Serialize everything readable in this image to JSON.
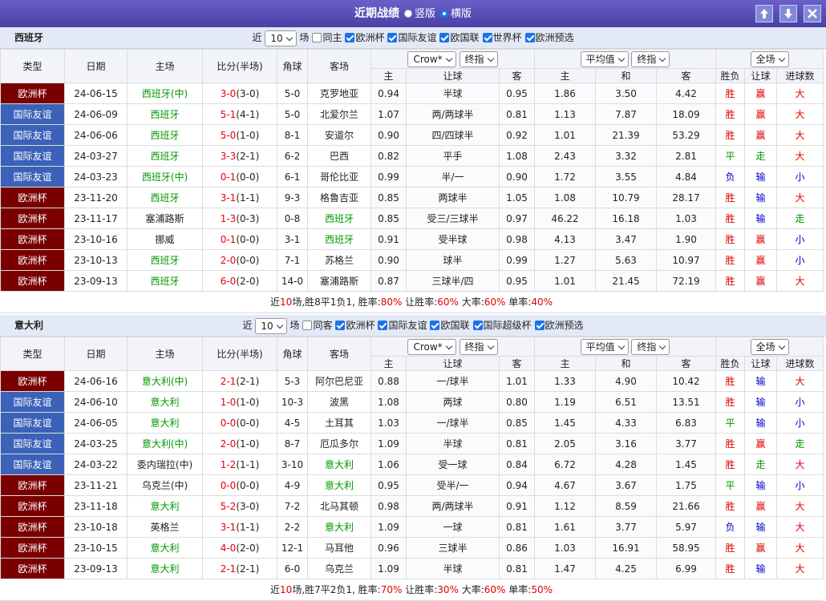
{
  "header": {
    "title": "近期战绩",
    "options": [
      {
        "label": "竖版",
        "checked": false
      },
      {
        "label": "横版",
        "checked": true
      }
    ]
  },
  "columns": {
    "fixed": [
      "类型",
      "日期",
      "主场",
      "比分(半场)",
      "角球",
      "客场"
    ],
    "groups": [
      [
        "Crow*",
        "终指"
      ],
      [
        "平均值",
        "终指"
      ],
      [
        "全场"
      ]
    ],
    "sub": [
      "主",
      "让球",
      "客",
      "主",
      "和",
      "客",
      "胜负",
      "让球",
      "进球数"
    ]
  },
  "type_colors": {
    "欧洲杯": "#7a0000",
    "国际友谊": "#3b62b8"
  },
  "result_colors": {
    "胜": "#e00000",
    "平": "#009900",
    "负": "#0000cc",
    "赢": "#e00000",
    "输": "#0000cc",
    "走": "#009900",
    "大": "#e00000",
    "小": "#0000cc"
  },
  "team_color": "#009900",
  "summary_highlight_color": "#e00000",
  "sections": [
    {
      "team": "西班牙",
      "filter_prefix": "近",
      "filter_count": "10",
      "filter_suffix": "场",
      "filters": [
        {
          "label": "同主",
          "checked": false
        },
        {
          "label": "欧洲杯",
          "checked": true
        },
        {
          "label": "国际友谊",
          "checked": true
        },
        {
          "label": "欧国联",
          "checked": true
        },
        {
          "label": "世界杯",
          "checked": true
        },
        {
          "label": "欧洲预选",
          "checked": true
        }
      ],
      "rows": [
        [
          "欧洲杯",
          "24-06-15",
          "西班牙(中)",
          "3-0",
          "(3-0)",
          "5-0",
          "克罗地亚",
          "0.94",
          "半球",
          "0.95",
          "1.86",
          "3.50",
          "4.42",
          "胜",
          "赢",
          "大"
        ],
        [
          "国际友谊",
          "24-06-09",
          "西班牙",
          "5-1",
          "(4-1)",
          "5-0",
          "北爱尔兰",
          "1.07",
          "两/两球半",
          "0.81",
          "1.13",
          "7.87",
          "18.09",
          "胜",
          "赢",
          "大"
        ],
        [
          "国际友谊",
          "24-06-06",
          "西班牙",
          "5-0",
          "(1-0)",
          "8-1",
          "安道尔",
          "0.90",
          "四/四球半",
          "0.92",
          "1.01",
          "21.39",
          "53.29",
          "胜",
          "赢",
          "大"
        ],
        [
          "国际友谊",
          "24-03-27",
          "西班牙",
          "3-3",
          "(2-1)",
          "6-2",
          "巴西",
          "0.82",
          "平手",
          "1.08",
          "2.43",
          "3.32",
          "2.81",
          "平",
          "走",
          "大"
        ],
        [
          "国际友谊",
          "24-03-23",
          "西班牙(中)",
          "0-1",
          "(0-0)",
          "6-1",
          "哥伦比亚",
          "0.99",
          "半/一",
          "0.90",
          "1.72",
          "3.55",
          "4.84",
          "负",
          "输",
          "小"
        ],
        [
          "欧洲杯",
          "23-11-20",
          "西班牙",
          "3-1",
          "(1-1)",
          "9-3",
          "格鲁吉亚",
          "0.85",
          "两球半",
          "1.05",
          "1.08",
          "10.79",
          "28.17",
          "胜",
          "输",
          "大"
        ],
        [
          "欧洲杯",
          "23-11-17",
          "塞浦路斯",
          "1-3",
          "(0-3)",
          "0-8",
          "西班牙",
          "0.85",
          "受三/三球半",
          "0.97",
          "46.22",
          "16.18",
          "1.03",
          "胜",
          "输",
          "走"
        ],
        [
          "欧洲杯",
          "23-10-16",
          "挪威",
          "0-1",
          "(0-0)",
          "3-1",
          "西班牙",
          "0.91",
          "受半球",
          "0.98",
          "4.13",
          "3.47",
          "1.90",
          "胜",
          "赢",
          "小"
        ],
        [
          "欧洲杯",
          "23-10-13",
          "西班牙",
          "2-0",
          "(0-0)",
          "7-1",
          "苏格兰",
          "0.90",
          "球半",
          "0.99",
          "1.27",
          "5.63",
          "10.97",
          "胜",
          "赢",
          "小"
        ],
        [
          "欧洲杯",
          "23-09-13",
          "西班牙",
          "6-0",
          "(2-0)",
          "14-0",
          "塞浦路斯",
          "0.87",
          "三球半/四",
          "0.95",
          "1.01",
          "21.45",
          "72.19",
          "胜",
          "赢",
          "大"
        ]
      ],
      "summary": [
        "近",
        "10",
        "场,胜8平1负1, 胜率:",
        "80%",
        " 让胜率:",
        "60%",
        " 大率:",
        "60%",
        " 单率:",
        "40%"
      ]
    },
    {
      "team": "意大利",
      "filter_prefix": "近",
      "filter_count": "10",
      "filter_suffix": "场",
      "filters": [
        {
          "label": "同客",
          "checked": false
        },
        {
          "label": "欧洲杯",
          "checked": true
        },
        {
          "label": "国际友谊",
          "checked": true
        },
        {
          "label": "欧国联",
          "checked": true
        },
        {
          "label": "国际超级杯",
          "checked": true
        },
        {
          "label": "欧洲预选",
          "checked": true
        }
      ],
      "rows": [
        [
          "欧洲杯",
          "24-06-16",
          "意大利(中)",
          "2-1",
          "(2-1)",
          "5-3",
          "阿尔巴尼亚",
          "0.88",
          "一/球半",
          "1.01",
          "1.33",
          "4.90",
          "10.42",
          "胜",
          "输",
          "大"
        ],
        [
          "国际友谊",
          "24-06-10",
          "意大利",
          "1-0",
          "(1-0)",
          "10-3",
          "波黑",
          "1.08",
          "两球",
          "0.80",
          "1.19",
          "6.51",
          "13.51",
          "胜",
          "输",
          "小"
        ],
        [
          "国际友谊",
          "24-06-05",
          "意大利",
          "0-0",
          "(0-0)",
          "4-5",
          "土耳其",
          "1.03",
          "一/球半",
          "0.85",
          "1.45",
          "4.33",
          "6.83",
          "平",
          "输",
          "小"
        ],
        [
          "国际友谊",
          "24-03-25",
          "意大利(中)",
          "2-0",
          "(1-0)",
          "8-7",
          "厄瓜多尔",
          "1.09",
          "半球",
          "0.81",
          "2.05",
          "3.16",
          "3.77",
          "胜",
          "赢",
          "走"
        ],
        [
          "国际友谊",
          "24-03-22",
          "委内瑞拉(中)",
          "1-2",
          "(1-1)",
          "3-10",
          "意大利",
          "1.06",
          "受一球",
          "0.84",
          "6.72",
          "4.28",
          "1.45",
          "胜",
          "走",
          "大"
        ],
        [
          "欧洲杯",
          "23-11-21",
          "乌克兰(中)",
          "0-0",
          "(0-0)",
          "4-9",
          "意大利",
          "0.95",
          "受半/一",
          "0.94",
          "4.67",
          "3.67",
          "1.75",
          "平",
          "输",
          "小"
        ],
        [
          "欧洲杯",
          "23-11-18",
          "意大利",
          "5-2",
          "(3-0)",
          "7-2",
          "北马其顿",
          "0.98",
          "两/两球半",
          "0.91",
          "1.12",
          "8.59",
          "21.66",
          "胜",
          "赢",
          "大"
        ],
        [
          "欧洲杯",
          "23-10-18",
          "英格兰",
          "3-1",
          "(1-1)",
          "2-2",
          "意大利",
          "1.09",
          "一球",
          "0.81",
          "1.61",
          "3.77",
          "5.97",
          "负",
          "输",
          "大"
        ],
        [
          "欧洲杯",
          "23-10-15",
          "意大利",
          "4-0",
          "(2-0)",
          "12-1",
          "马耳他",
          "0.96",
          "三球半",
          "0.86",
          "1.03",
          "16.91",
          "58.95",
          "胜",
          "赢",
          "大"
        ],
        [
          "欧洲杯",
          "23-09-13",
          "意大利",
          "2-1",
          "(2-1)",
          "6-0",
          "乌克兰",
          "1.09",
          "半球",
          "0.81",
          "1.47",
          "4.25",
          "6.99",
          "胜",
          "输",
          "大"
        ]
      ],
      "summary": [
        "近",
        "10",
        "场,胜7平2负1, 胜率:",
        "70%",
        " 让胜率:",
        "30%",
        " 大率:",
        "60%",
        " 单率:",
        "50%"
      ]
    }
  ]
}
